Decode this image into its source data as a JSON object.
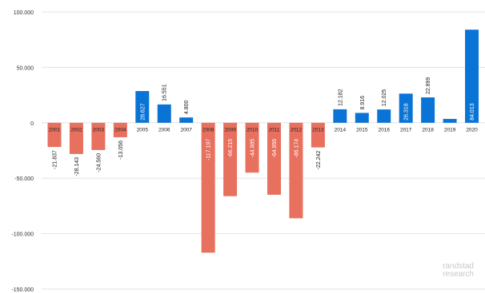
{
  "chart_data": {
    "type": "bar",
    "title": "",
    "xlabel": "",
    "ylabel": "",
    "ylim": [
      -150000,
      100000
    ],
    "y_ticks": [
      "100.000",
      "50.000",
      "0",
      "-50.000",
      "-100.000",
      "-150.000"
    ],
    "y_tick_values": [
      100000,
      50000,
      0,
      -50000,
      -100000,
      -150000
    ],
    "grid": true,
    "categories": [
      "2001",
      "2002",
      "2003",
      "2004",
      "2005",
      "2006",
      "2007",
      "2008",
      "2009",
      "2010",
      "2011",
      "2012",
      "2013",
      "2014",
      "2015",
      "2016",
      "2017",
      "2018",
      "2019",
      "2020"
    ],
    "values": [
      -21837,
      -28143,
      -24560,
      -13056,
      28627,
      16551,
      4800,
      -117197,
      -66215,
      -44985,
      -64956,
      -86174,
      -22242,
      12182,
      8916,
      12025,
      26318,
      22899,
      3500,
      84013
    ],
    "value_labels": [
      "-21.837",
      "-28.143",
      "-24.560",
      "-13.056",
      "28.627",
      "16.551",
      "4.800",
      "-117.197",
      "-66.215",
      "-44.985",
      "-64.956",
      "-86.174",
      "-22.242",
      "12.182",
      "8.916",
      "12.025",
      "26.318",
      "22.899",
      "",
      "84.013"
    ],
    "colors": {
      "positive": "#0a74d6",
      "negative": "#e8705e"
    }
  },
  "brand": {
    "line1": "randstad",
    "line2": "research"
  }
}
